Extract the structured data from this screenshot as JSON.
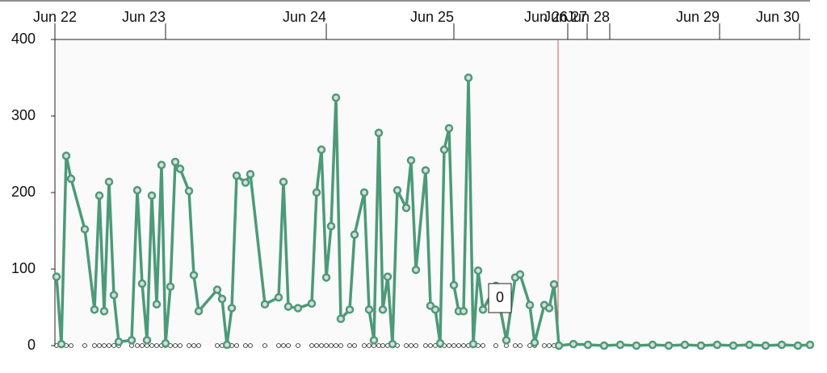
{
  "chart_data": {
    "type": "line",
    "x": [
      2,
      8,
      14,
      20,
      37,
      49,
      55,
      61,
      67,
      73,
      79,
      95,
      102,
      108,
      114,
      120,
      126,
      132,
      137,
      143,
      149,
      155,
      166,
      172,
      178,
      201,
      207,
      213,
      219,
      225,
      236,
      242,
      260,
      277,
      283,
      289,
      301,
      318,
      324,
      330,
      336,
      342,
      348,
      354,
      365,
      371,
      383,
      389,
      395,
      401,
      406,
      412,
      418,
      424,
      435,
      441,
      447,
      459,
      465,
      471,
      477,
      482,
      488,
      494,
      500,
      506,
      512,
      518,
      524,
      530,
      546,
      559,
      570,
      576,
      588,
      594,
      606,
      612,
      618,
      624,
      642,
      660,
      680,
      700,
      720,
      740,
      760,
      780,
      800,
      820,
      840,
      860,
      880,
      900,
      920,
      935
    ],
    "series": [
      {
        "color": "#4c9a78",
        "values": [
          90,
          2,
          248,
          218,
          152,
          47,
          196,
          45,
          214,
          66,
          5,
          7,
          203,
          81,
          7,
          196,
          54,
          236,
          3,
          77,
          240,
          231,
          202,
          92,
          45,
          73,
          61,
          1,
          49,
          222,
          213,
          224,
          54,
          63,
          214,
          51,
          49,
          55,
          200,
          256,
          89,
          156,
          324,
          35,
          47,
          145,
          200,
          47,
          7,
          278,
          47,
          90,
          2,
          203,
          180,
          242,
          99,
          229,
          52,
          47,
          3,
          256,
          284,
          79,
          45,
          45,
          350,
          2,
          98,
          47,
          78,
          7,
          89,
          93,
          53,
          4,
          53,
          49,
          80,
          0,
          2,
          1,
          0,
          1,
          0,
          1,
          0,
          1,
          0,
          1,
          0,
          1,
          0,
          1,
          0,
          1
        ]
      },
      {
        "color": "#222222",
        "values": [
          0,
          0,
          0,
          0,
          0,
          0,
          0,
          0,
          0,
          0,
          0,
          0,
          0,
          0,
          0,
          0,
          0,
          0,
          0,
          0,
          0,
          0,
          0,
          0,
          0,
          0,
          0,
          0,
          0,
          0,
          0,
          0,
          0,
          0,
          0,
          0,
          0,
          0,
          0,
          0,
          0,
          0,
          0,
          0,
          0,
          0,
          0,
          0,
          0,
          0,
          0,
          0,
          0,
          0,
          0,
          0,
          0,
          0,
          0,
          0,
          0,
          0,
          0,
          0,
          0,
          0,
          0,
          0,
          0,
          0,
          0,
          0,
          0,
          0,
          0,
          0,
          0,
          0,
          0,
          0,
          0,
          0,
          0,
          0,
          0,
          0,
          0,
          0,
          0,
          0,
          0,
          0,
          0,
          0,
          0,
          0
        ]
      }
    ],
    "xlim": [
      0,
      935
    ],
    "xticks": [
      {
        "value": 0,
        "label": "Jun 22"
      },
      {
        "value": 137,
        "label": "Jun 23"
      },
      {
        "value": 336,
        "label": "Jun 24"
      },
      {
        "value": 494,
        "label": "Jun 25"
      },
      {
        "value": 635,
        "label": "Jun 26"
      },
      {
        "value": 659,
        "label": "Jun 27"
      },
      {
        "value": 687,
        "label": "Jun 28"
      },
      {
        "value": 823,
        "label": "Jun 29"
      },
      {
        "value": 922,
        "label": "Jun 30"
      }
    ],
    "ylim": [
      0,
      400
    ],
    "yticks": [
      0,
      100,
      200,
      300,
      400
    ],
    "vline": {
      "x": 623,
      "color": "#d9534f"
    },
    "annotation": "0"
  }
}
